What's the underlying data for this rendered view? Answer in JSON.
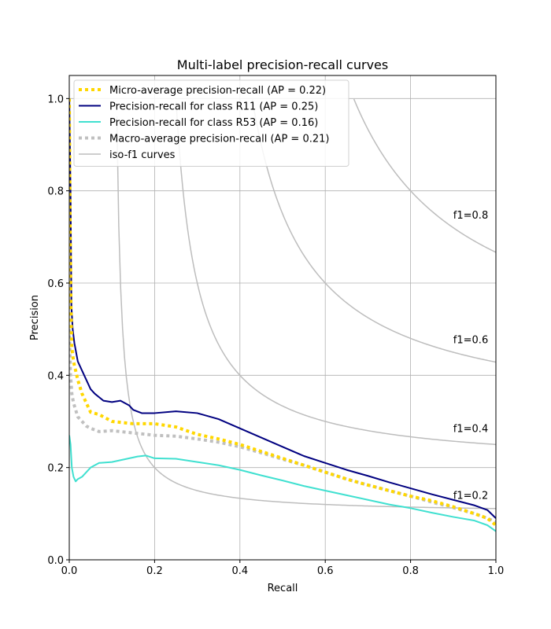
{
  "chart_data": {
    "type": "line",
    "title": "Multi-label precision-recall curves",
    "xlabel": "Recall",
    "ylabel": "Precision",
    "xlim": [
      0.0,
      1.0
    ],
    "ylim": [
      0.0,
      1.05
    ],
    "xticks": [
      "0.0",
      "0.2",
      "0.4",
      "0.6",
      "0.8",
      "1.0"
    ],
    "yticks": [
      "0.0",
      "0.2",
      "0.4",
      "0.6",
      "0.8",
      "1.0"
    ],
    "grid": true,
    "legend_position": "top-left",
    "series": [
      {
        "name": "Micro-average precision-recall (AP = 0.22)",
        "color": "#ffd700",
        "style": "dotted",
        "points": [
          [
            0.0,
            1.0
          ],
          [
            0.002,
            0.72
          ],
          [
            0.004,
            0.55
          ],
          [
            0.006,
            0.46
          ],
          [
            0.01,
            0.43
          ],
          [
            0.015,
            0.41
          ],
          [
            0.02,
            0.39
          ],
          [
            0.03,
            0.36
          ],
          [
            0.04,
            0.34
          ],
          [
            0.05,
            0.32
          ],
          [
            0.07,
            0.315
          ],
          [
            0.1,
            0.3
          ],
          [
            0.15,
            0.295
          ],
          [
            0.2,
            0.295
          ],
          [
            0.25,
            0.288
          ],
          [
            0.3,
            0.272
          ],
          [
            0.35,
            0.262
          ],
          [
            0.4,
            0.25
          ],
          [
            0.45,
            0.235
          ],
          [
            0.5,
            0.22
          ],
          [
            0.55,
            0.205
          ],
          [
            0.6,
            0.19
          ],
          [
            0.65,
            0.175
          ],
          [
            0.7,
            0.162
          ],
          [
            0.75,
            0.15
          ],
          [
            0.8,
            0.138
          ],
          [
            0.85,
            0.128
          ],
          [
            0.9,
            0.115
          ],
          [
            0.95,
            0.1
          ],
          [
            0.98,
            0.09
          ],
          [
            1.0,
            0.075
          ]
        ]
      },
      {
        "name": "Precision-recall for class R11 (AP = 0.25)",
        "color": "#000080",
        "style": "solid",
        "points": [
          [
            0.0,
            1.0
          ],
          [
            0.003,
            0.8
          ],
          [
            0.005,
            0.55
          ],
          [
            0.008,
            0.5
          ],
          [
            0.012,
            0.47
          ],
          [
            0.02,
            0.43
          ],
          [
            0.03,
            0.41
          ],
          [
            0.04,
            0.39
          ],
          [
            0.05,
            0.37
          ],
          [
            0.06,
            0.36
          ],
          [
            0.08,
            0.345
          ],
          [
            0.1,
            0.342
          ],
          [
            0.12,
            0.345
          ],
          [
            0.14,
            0.335
          ],
          [
            0.15,
            0.325
          ],
          [
            0.17,
            0.318
          ],
          [
            0.2,
            0.318
          ],
          [
            0.25,
            0.322
          ],
          [
            0.3,
            0.318
          ],
          [
            0.35,
            0.305
          ],
          [
            0.4,
            0.285
          ],
          [
            0.45,
            0.265
          ],
          [
            0.5,
            0.245
          ],
          [
            0.55,
            0.225
          ],
          [
            0.6,
            0.21
          ],
          [
            0.65,
            0.195
          ],
          [
            0.7,
            0.182
          ],
          [
            0.75,
            0.168
          ],
          [
            0.8,
            0.155
          ],
          [
            0.85,
            0.142
          ],
          [
            0.9,
            0.13
          ],
          [
            0.95,
            0.118
          ],
          [
            0.98,
            0.108
          ],
          [
            1.0,
            0.09
          ]
        ]
      },
      {
        "name": "Precision-recall for class R53 (AP = 0.16)",
        "color": "#40e0d0",
        "style": "solid",
        "points": [
          [
            0.0,
            0.27
          ],
          [
            0.003,
            0.25
          ],
          [
            0.006,
            0.2
          ],
          [
            0.01,
            0.18
          ],
          [
            0.015,
            0.17
          ],
          [
            0.02,
            0.175
          ],
          [
            0.03,
            0.18
          ],
          [
            0.04,
            0.19
          ],
          [
            0.05,
            0.2
          ],
          [
            0.07,
            0.21
          ],
          [
            0.1,
            0.212
          ],
          [
            0.13,
            0.218
          ],
          [
            0.16,
            0.224
          ],
          [
            0.18,
            0.226
          ],
          [
            0.2,
            0.22
          ],
          [
            0.25,
            0.219
          ],
          [
            0.3,
            0.212
          ],
          [
            0.35,
            0.205
          ],
          [
            0.4,
            0.195
          ],
          [
            0.45,
            0.183
          ],
          [
            0.5,
            0.172
          ],
          [
            0.55,
            0.16
          ],
          [
            0.6,
            0.15
          ],
          [
            0.65,
            0.14
          ],
          [
            0.7,
            0.13
          ],
          [
            0.75,
            0.12
          ],
          [
            0.8,
            0.112
          ],
          [
            0.85,
            0.102
          ],
          [
            0.9,
            0.093
          ],
          [
            0.95,
            0.085
          ],
          [
            0.98,
            0.075
          ],
          [
            1.0,
            0.062
          ]
        ]
      },
      {
        "name": "Macro-average precision-recall (AP = 0.21)",
        "color": "#c0c0c0",
        "style": "dotted",
        "points": [
          [
            0.0,
            0.5
          ],
          [
            0.003,
            0.4
          ],
          [
            0.006,
            0.36
          ],
          [
            0.01,
            0.34
          ],
          [
            0.02,
            0.31
          ],
          [
            0.03,
            0.3
          ],
          [
            0.04,
            0.29
          ],
          [
            0.05,
            0.285
          ],
          [
            0.07,
            0.278
          ],
          [
            0.1,
            0.28
          ],
          [
            0.15,
            0.275
          ],
          [
            0.2,
            0.27
          ],
          [
            0.25,
            0.268
          ],
          [
            0.3,
            0.262
          ],
          [
            0.35,
            0.255
          ],
          [
            0.4,
            0.245
          ],
          [
            0.45,
            0.232
          ],
          [
            0.5,
            0.218
          ],
          [
            0.55,
            0.205
          ],
          [
            0.6,
            0.19
          ],
          [
            0.65,
            0.175
          ],
          [
            0.7,
            0.162
          ],
          [
            0.75,
            0.15
          ],
          [
            0.8,
            0.138
          ],
          [
            0.85,
            0.125
          ],
          [
            0.9,
            0.113
          ],
          [
            0.95,
            0.1
          ],
          [
            0.98,
            0.09
          ],
          [
            1.0,
            0.082
          ]
        ]
      }
    ],
    "iso_f1": {
      "legend": "iso-f1 curves",
      "color": "#bdbdbd",
      "values": [
        0.2,
        0.4,
        0.6,
        0.8
      ],
      "labels": [
        "f1=0.2",
        "f1=0.4",
        "f1=0.6",
        "f1=0.8"
      ],
      "label_x": 0.9
    }
  }
}
